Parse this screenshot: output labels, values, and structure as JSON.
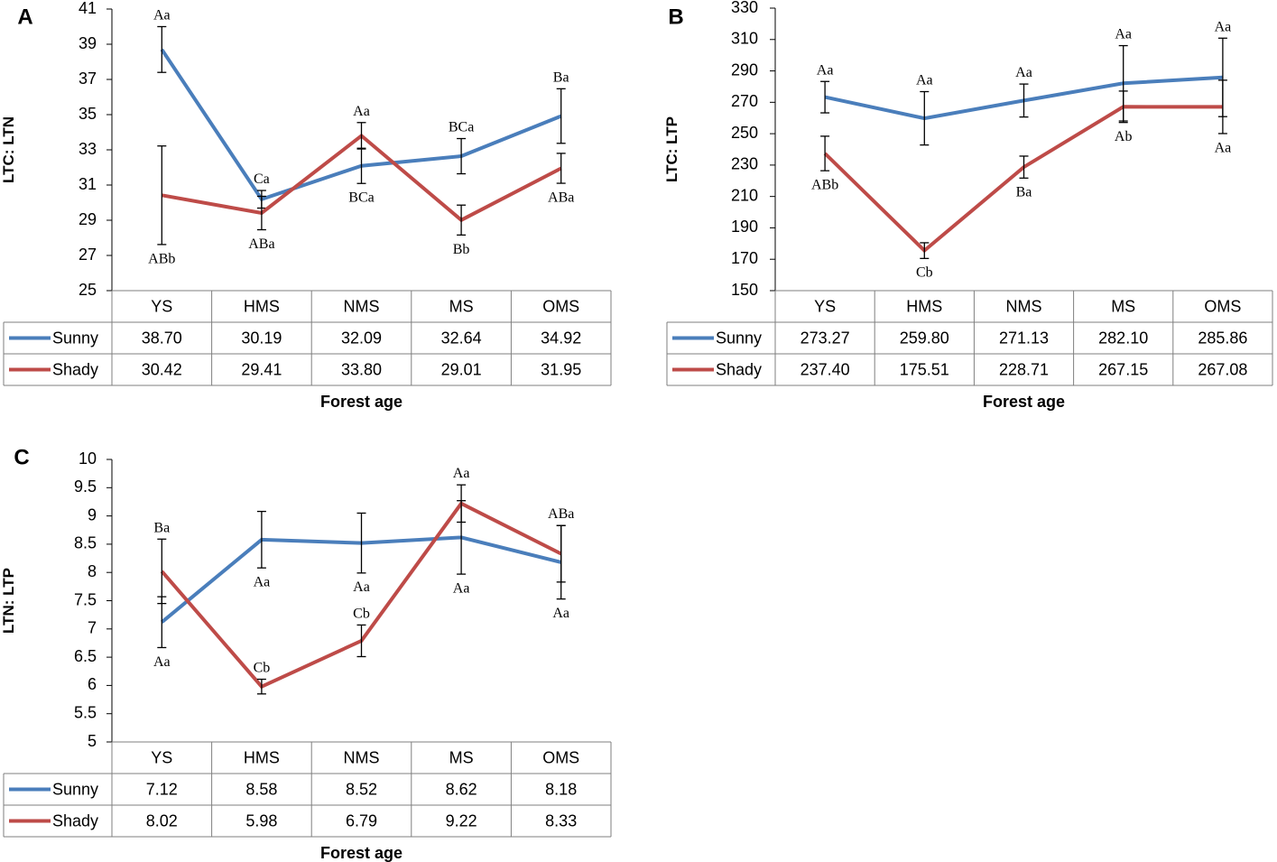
{
  "figure": {
    "colors": {
      "sunny": "#4A7EBB",
      "shady": "#BE4B48",
      "axis": "#000000",
      "grid": "#7f7f7f"
    }
  },
  "chart_data": [
    {
      "type": "line",
      "panel_label": "A",
      "ylabel": "LTC: LTN",
      "xlabel": "Forest age",
      "categories": [
        "YS",
        "HMS",
        "NMS",
        "MS",
        "OMS"
      ],
      "ylim": [
        25,
        41
      ],
      "ystep": 2,
      "yticks": [
        "25",
        "27",
        "29",
        "31",
        "33",
        "35",
        "37",
        "39",
        "41"
      ],
      "series": [
        {
          "name": "Sunny",
          "values": [
            38.7,
            30.19,
            32.09,
            32.64,
            34.92
          ],
          "value_labels": [
            "38.70",
            "30.19",
            "32.09",
            "32.64",
            "34.92"
          ],
          "errors": [
            1.3,
            0.5,
            1.0,
            1.0,
            1.55
          ],
          "letters": [
            "Aa",
            "Ca",
            "BCa",
            "BCa",
            "Ba"
          ],
          "letter_pos": [
            "above",
            "above",
            "below",
            "above",
            "above"
          ]
        },
        {
          "name": "Shady",
          "values": [
            30.42,
            29.41,
            33.8,
            29.01,
            31.95
          ],
          "value_labels": [
            "30.42",
            "29.41",
            "33.80",
            "29.01",
            "31.95"
          ],
          "errors": [
            2.8,
            0.95,
            0.75,
            0.85,
            0.85
          ],
          "letters": [
            "ABb",
            "ABa",
            "Aa",
            "Bb",
            "ABa"
          ],
          "letter_pos": [
            "below",
            "below",
            "above",
            "below",
            "below"
          ]
        }
      ]
    },
    {
      "type": "line",
      "panel_label": "B",
      "ylabel": "LTC: LTP",
      "xlabel": "Forest age",
      "categories": [
        "YS",
        "HMS",
        "NMS",
        "MS",
        "OMS"
      ],
      "ylim": [
        150,
        330
      ],
      "ystep": 20,
      "yticks": [
        "150",
        "170",
        "190",
        "210",
        "230",
        "250",
        "270",
        "290",
        "310",
        "330"
      ],
      "series": [
        {
          "name": "Sunny",
          "values": [
            273.27,
            259.8,
            271.13,
            282.1,
            285.86
          ],
          "value_labels": [
            "273.27",
            "259.80",
            "271.13",
            "282.10",
            "285.86"
          ],
          "errors": [
            10,
            17,
            10.5,
            24,
            25
          ],
          "letters": [
            "Aa",
            "Aa",
            "Aa",
            "Aa",
            "Aa"
          ],
          "letter_pos": [
            "above",
            "above",
            "above",
            "above",
            "above"
          ]
        },
        {
          "name": "Shady",
          "values": [
            237.4,
            175.51,
            228.71,
            267.15,
            267.08
          ],
          "value_labels": [
            "237.40",
            "175.51",
            "228.71",
            "267.15",
            "267.08"
          ],
          "errors": [
            11,
            5,
            7,
            10,
            17
          ],
          "letters": [
            "ABb",
            "Cb",
            "Ba",
            "Ab",
            "Aa"
          ],
          "letter_pos": [
            "below",
            "below",
            "below",
            "below",
            "below"
          ]
        }
      ]
    },
    {
      "type": "line",
      "panel_label": "C",
      "ylabel": "LTN: LTP",
      "xlabel": "Forest age",
      "categories": [
        "YS",
        "HMS",
        "NMS",
        "MS",
        "OMS"
      ],
      "ylim": [
        5,
        10
      ],
      "ystep": 0.5,
      "yticks": [
        "5",
        "5.5",
        "6",
        "6.5",
        "7",
        "7.5",
        "8",
        "8.5",
        "9",
        "9.5",
        "10"
      ],
      "series": [
        {
          "name": "Sunny",
          "values": [
            7.12,
            8.58,
            8.52,
            8.62,
            8.18
          ],
          "value_labels": [
            "7.12",
            "8.58",
            "8.52",
            "8.62",
            "8.18"
          ],
          "errors": [
            0.45,
            0.5,
            0.53,
            0.65,
            0.65
          ],
          "letters": [
            "Aa",
            "Aa",
            "Aa",
            "Aa",
            "Aa"
          ],
          "letter_pos": [
            "below",
            "below",
            "below",
            "below",
            "below"
          ]
        },
        {
          "name": "Shady",
          "values": [
            8.02,
            5.98,
            6.79,
            9.22,
            8.33
          ],
          "value_labels": [
            "8.02",
            "5.98",
            "6.79",
            "9.22",
            "8.33"
          ],
          "errors": [
            0.57,
            0.13,
            0.28,
            0.33,
            0.5
          ],
          "letters": [
            "Ba",
            "Cb",
            "Cb",
            "Aa",
            "ABa"
          ],
          "letter_pos": [
            "above",
            "above",
            "above",
            "above",
            "above"
          ]
        }
      ]
    }
  ]
}
